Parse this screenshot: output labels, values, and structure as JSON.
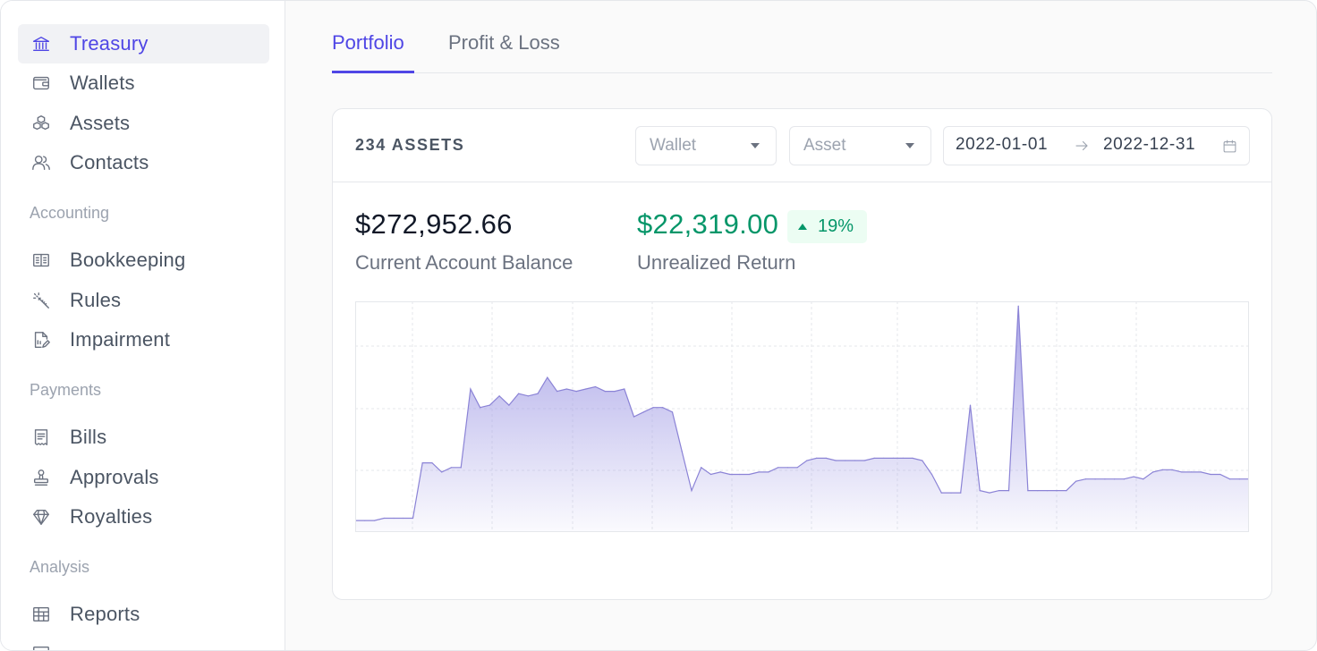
{
  "sidebar": {
    "items": [
      {
        "label": "Treasury",
        "icon": "bank-icon",
        "active": true
      },
      {
        "label": "Wallets",
        "icon": "wallet-icon"
      },
      {
        "label": "Assets",
        "icon": "cubes-icon"
      },
      {
        "label": "Contacts",
        "icon": "users-icon"
      },
      {
        "label": "Bookkeeping",
        "icon": "ledger-icon"
      },
      {
        "label": "Rules",
        "icon": "magic-wand-icon"
      },
      {
        "label": "Impairment",
        "icon": "document-edit-icon"
      },
      {
        "label": "Bills",
        "icon": "receipt-icon"
      },
      {
        "label": "Approvals",
        "icon": "stamp-icon"
      },
      {
        "label": "Royalties",
        "icon": "diamond-icon"
      },
      {
        "label": "Reports",
        "icon": "table-report-icon"
      }
    ],
    "sections": {
      "accounting": "Accounting",
      "payments": "Payments",
      "analysis": "Analysis"
    }
  },
  "tabs": [
    {
      "label": "Portfolio",
      "active": true
    },
    {
      "label": "Profit & Loss"
    }
  ],
  "card": {
    "asset_count": "234 ASSETS",
    "wallet_placeholder": "Wallet",
    "asset_placeholder": "Asset",
    "date_start": "2022-01-01",
    "date_end": "2022-12-31"
  },
  "stats": {
    "balance_value": "$272,952.66",
    "balance_label": "Current Account Balance",
    "return_value": "$22,319.00",
    "return_label": "Unrealized Return",
    "return_change": "19%"
  },
  "colors": {
    "accent": "#4f46e5",
    "positive": "#059669",
    "chart_line": "#8b83d6",
    "chart_fill": "#a5a0e6"
  },
  "chart_data": {
    "type": "area",
    "title": "",
    "xlabel": "",
    "ylabel": "",
    "grid": true,
    "ylim": [
      0,
      100
    ],
    "series": [
      {
        "values": [
          5,
          5,
          5,
          6,
          6,
          6,
          6,
          30,
          30,
          26,
          28,
          28,
          62,
          54,
          55,
          59,
          55,
          60,
          59,
          60,
          67,
          61,
          62,
          61,
          62,
          63,
          61,
          61,
          62,
          50,
          52,
          54,
          54,
          52,
          35,
          18,
          28,
          25,
          26,
          25,
          25,
          25,
          26,
          26,
          28,
          28,
          28,
          31,
          32,
          32,
          31,
          31,
          31,
          31,
          32,
          32,
          32,
          32,
          32,
          31,
          25,
          17,
          17,
          17,
          55,
          18,
          17,
          18,
          18,
          98,
          18,
          18,
          18,
          18,
          18,
          22,
          23,
          23,
          23,
          23,
          23,
          24,
          23,
          26,
          27,
          27,
          26,
          26,
          26,
          25,
          25,
          23,
          23,
          23
        ]
      }
    ]
  }
}
